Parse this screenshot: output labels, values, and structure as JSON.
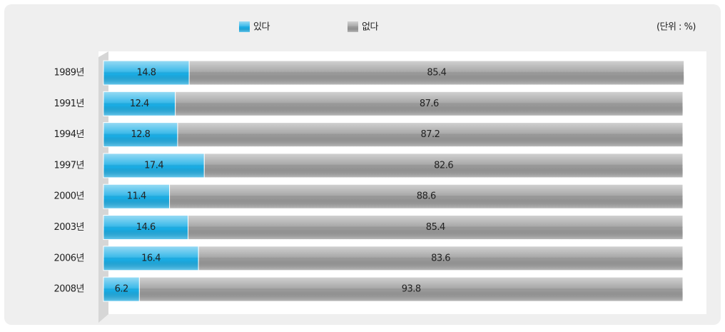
{
  "chart_data": {
    "type": "stacked_barh",
    "annotation": "(단위 : %)",
    "categories": [
      "1989년",
      "1991년",
      "1994년",
      "1997년",
      "2000년",
      "2003년",
      "2006년",
      "2008년"
    ],
    "series": [
      {
        "name": "있다",
        "color": "#1aaee6",
        "values": [
          14.8,
          12.4,
          12.8,
          17.4,
          11.4,
          14.6,
          16.4,
          6.2
        ]
      },
      {
        "name": "없다",
        "color": "#9a9a9a",
        "values": [
          85.4,
          87.6,
          87.2,
          82.6,
          88.6,
          85.4,
          83.6,
          93.8
        ]
      }
    ],
    "xlim": [
      0,
      100
    ]
  }
}
